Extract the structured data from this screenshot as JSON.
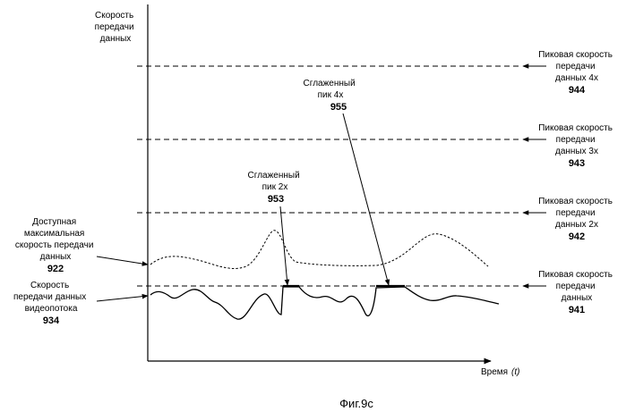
{
  "axes": {
    "y_label": [
      "Скорость",
      "передачи",
      "данных"
    ],
    "x_label": "Время",
    "x_var": "(t)"
  },
  "right_labels": [
    {
      "lines": [
        "Пиковая скорость",
        "передачи",
        "данных 4x"
      ],
      "number": "944"
    },
    {
      "lines": [
        "Пиковая скорость",
        "передачи",
        "данных 3x"
      ],
      "number": "943"
    },
    {
      "lines": [
        "Пиковая скорость",
        "передачи",
        "данных 2x"
      ],
      "number": "942"
    },
    {
      "lines": [
        "Пиковая скорость",
        "передачи",
        "данных"
      ],
      "number": "941"
    }
  ],
  "left_labels": [
    {
      "lines": [
        "Доступная",
        "максимальная",
        "скорость передачи",
        "данных"
      ],
      "number": "922"
    },
    {
      "lines": [
        "Скорость",
        "передачи данных",
        "видеопотока"
      ],
      "number": "934"
    }
  ],
  "callouts": [
    {
      "lines": [
        "Сглаженный",
        "пик 4x"
      ],
      "number": "955"
    },
    {
      "lines": [
        "Сглаженный",
        "пик 2x"
      ],
      "number": "953"
    }
  ],
  "caption": "Фиг.9с"
}
